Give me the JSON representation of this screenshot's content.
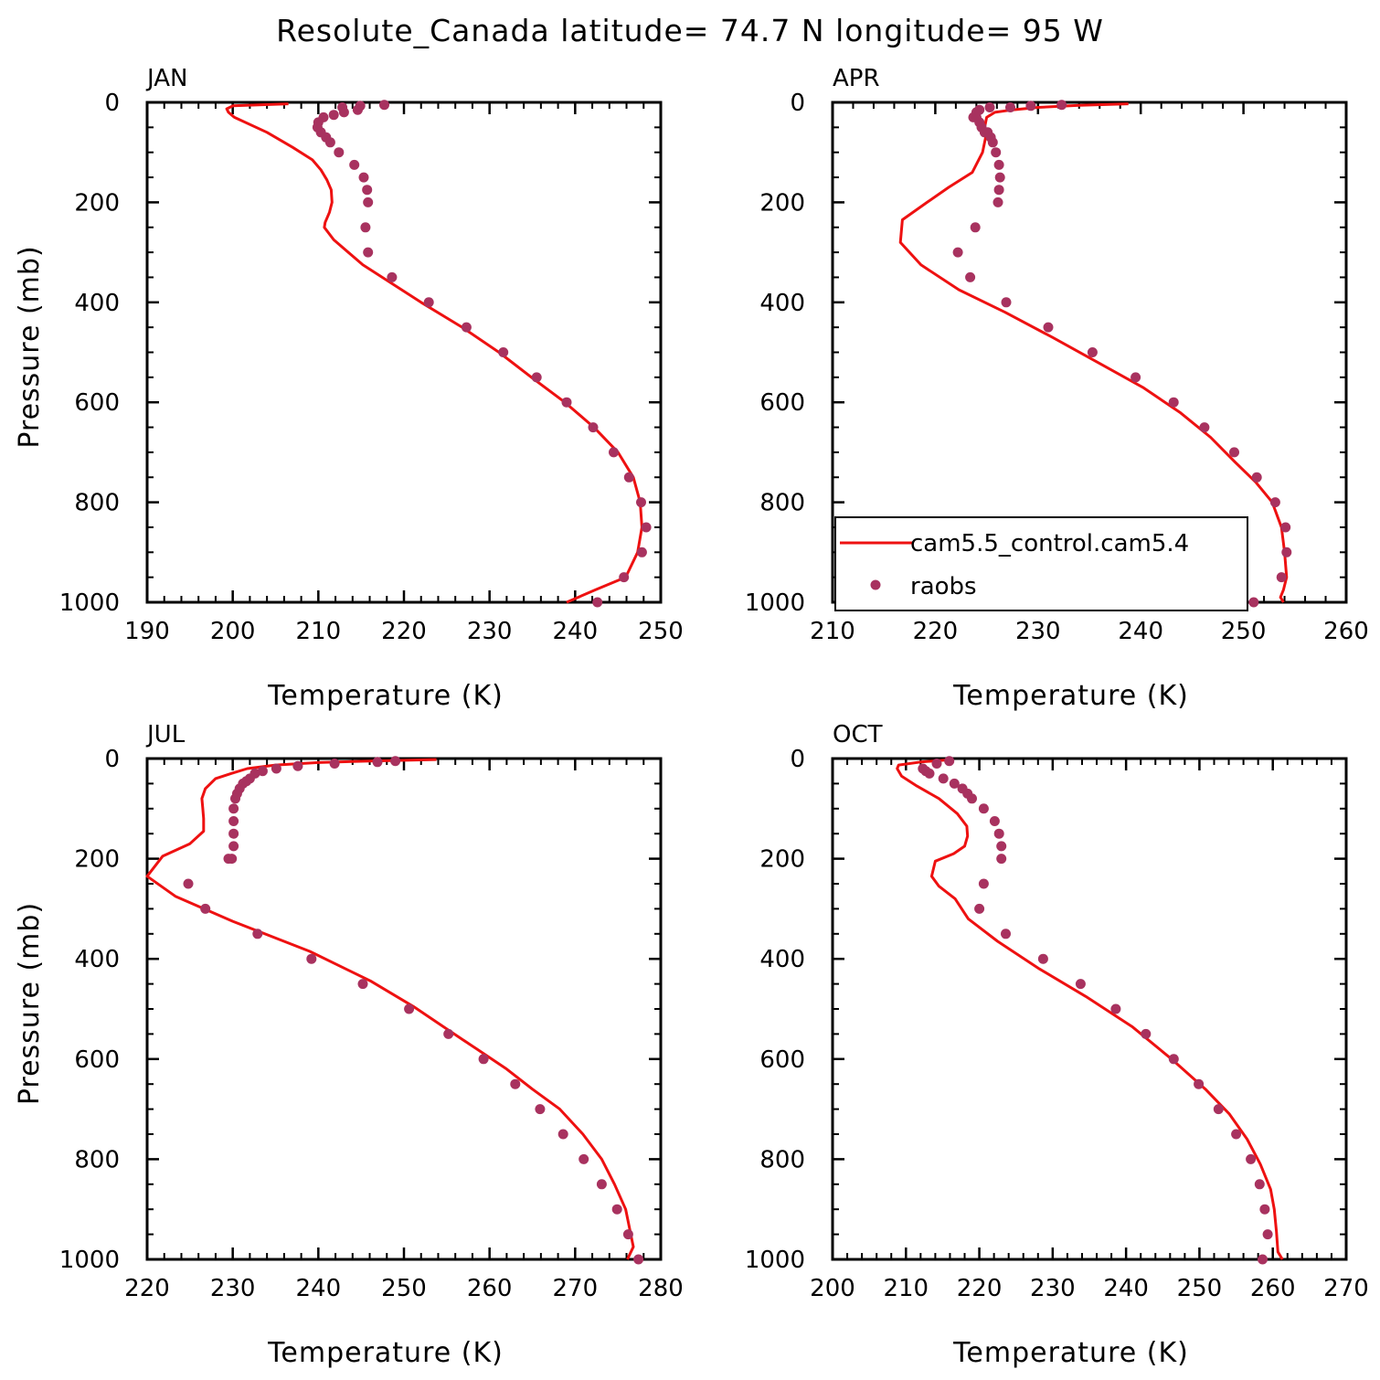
{
  "figure": {
    "title": "Resolute_Canada  latitude= 74.7 N longitude= 95 W"
  },
  "legend": {
    "line_label": "cam5.5_control.cam5.4",
    "dots_label": "raobs"
  },
  "colors": {
    "model_line": "#ee1111",
    "raobs_dots": "#a8325f",
    "axes": "#000000"
  },
  "chart_data": [
    {
      "type": "line",
      "panel_title": "JAN",
      "xlabel": "Temperature (K)",
      "ylabel": "Pressure (mb)",
      "xlim": [
        190,
        250
      ],
      "xticks": [
        190,
        200,
        210,
        220,
        230,
        240,
        250
      ],
      "ylim": [
        1000,
        0
      ],
      "yticks": [
        0,
        200,
        400,
        600,
        800,
        1000
      ],
      "grid": false,
      "series": [
        {
          "name": "cam5.5_control.cam5.4",
          "kind": "line",
          "temperature": [
            206.5,
            200.0,
            199.3,
            199.5,
            200.2,
            204.0,
            207.0,
            209.3,
            210.3,
            211.0,
            211.5,
            211.6,
            211.3,
            210.8,
            210.7,
            211.8,
            215.2,
            222.0,
            226.8,
            231.1,
            234.9,
            238.8,
            242.2,
            245.0,
            246.8,
            247.6,
            247.8,
            247.3,
            245.9,
            242.4,
            239.0
          ],
          "pressure": [
            3,
            7,
            13,
            20,
            30,
            60,
            90,
            115,
            135,
            155,
            175,
            200,
            220,
            240,
            250,
            275,
            325,
            400,
            450,
            500,
            550,
            600,
            650,
            700,
            750,
            800,
            850,
            900,
            950,
            975,
            1000
          ]
        },
        {
          "name": "raobs",
          "kind": "points",
          "temperature": [
            217.7,
            214.9,
            212.8,
            214.6,
            213.0,
            211.8,
            210.6,
            210.0,
            209.9,
            210.3,
            210.9,
            211.4,
            212.4,
            214.2,
            215.3,
            215.7,
            215.8,
            215.5,
            215.8,
            218.6,
            222.9,
            227.3,
            231.6,
            235.5,
            239.0,
            242.1,
            244.5,
            246.3,
            247.7,
            248.3,
            247.8,
            245.7,
            242.6
          ],
          "pressure": [
            5,
            7,
            10,
            15,
            20,
            25,
            30,
            40,
            50,
            60,
            70,
            80,
            100,
            125,
            150,
            175,
            200,
            250,
            300,
            350,
            400,
            450,
            500,
            550,
            600,
            650,
            700,
            750,
            800,
            850,
            900,
            950,
            1000
          ]
        }
      ]
    },
    {
      "type": "line",
      "panel_title": "APR",
      "xlabel": "Temperature (K)",
      "ylabel": "",
      "xlim": [
        210,
        260
      ],
      "xticks": [
        210,
        220,
        230,
        240,
        250,
        260
      ],
      "ylim": [
        1000,
        0
      ],
      "yticks": [
        0,
        200,
        400,
        600,
        800,
        1000
      ],
      "grid": false,
      "series": [
        {
          "name": "cam5.5_control.cam5.4",
          "kind": "line",
          "temperature": [
            238.8,
            234.0,
            230.0,
            227.5,
            225.8,
            225.0,
            224.8,
            224.9,
            224.6,
            223.6,
            221.3,
            219.2,
            216.8,
            216.6,
            218.6,
            222.3,
            226.8,
            231.4,
            235.8,
            240.2,
            243.8,
            246.8,
            249.2,
            251.2,
            252.8,
            253.7,
            254.0,
            254.2,
            253.9,
            253.6,
            253.9
          ],
          "pressure": [
            3,
            6,
            10,
            15,
            20,
            30,
            50,
            70,
            100,
            140,
            170,
            200,
            235,
            280,
            325,
            375,
            420,
            470,
            520,
            570,
            620,
            670,
            720,
            760,
            800,
            850,
            900,
            950,
            975,
            990,
            1000
          ]
        },
        {
          "name": "raobs",
          "kind": "points",
          "temperature": [
            232.3,
            229.3,
            227.3,
            225.3,
            224.3,
            224.0,
            223.7,
            224.0,
            224.3,
            224.5,
            224.8,
            225.1,
            225.4,
            225.6,
            225.9,
            226.2,
            226.3,
            226.2,
            226.1,
            223.9,
            222.2,
            223.4,
            226.9,
            231.0,
            235.3,
            239.5,
            243.2,
            246.2,
            249.1,
            251.3,
            253.1,
            254.1,
            254.2,
            253.7,
            251.0
          ],
          "pressure": [
            5,
            7,
            10,
            10,
            15,
            20,
            30,
            30,
            40,
            50,
            60,
            60,
            70,
            80,
            100,
            125,
            150,
            175,
            200,
            250,
            300,
            350,
            400,
            450,
            500,
            550,
            600,
            650,
            700,
            750,
            800,
            850,
            900,
            950,
            1000
          ]
        }
      ]
    },
    {
      "type": "line",
      "panel_title": "JUL",
      "xlabel": "Temperature (K)",
      "ylabel": "Pressure (mb)",
      "xlim": [
        220,
        280
      ],
      "xticks": [
        220,
        230,
        240,
        250,
        260,
        270,
        280
      ],
      "ylim": [
        1000,
        0
      ],
      "yticks": [
        0,
        200,
        400,
        600,
        800,
        1000
      ],
      "grid": false,
      "series": [
        {
          "name": "cam5.5_control.cam5.4",
          "kind": "line",
          "temperature": [
            253.8,
            246.0,
            240.0,
            235.0,
            231.7,
            229.8,
            228.0,
            226.8,
            226.4,
            226.5,
            226.6,
            226.6,
            225.0,
            221.8,
            220.0,
            223.3,
            230.0,
            239.0,
            246.2,
            251.1,
            255.0,
            258.5,
            262.0,
            265.0,
            268.2,
            270.9,
            273.1,
            274.6,
            275.9,
            276.8,
            276.1
          ],
          "pressure": [
            2,
            5,
            8,
            13,
            20,
            30,
            40,
            60,
            80,
            100,
            120,
            145,
            170,
            195,
            235,
            275,
            325,
            385,
            445,
            495,
            540,
            580,
            620,
            660,
            700,
            750,
            800,
            850,
            900,
            975,
            1000
          ]
        },
        {
          "name": "raobs",
          "kind": "points",
          "temperature": [
            249.0,
            246.9,
            241.9,
            237.6,
            235.1,
            233.5,
            232.6,
            232.0,
            231.6,
            231.2,
            230.8,
            230.5,
            230.3,
            230.1,
            230.1,
            230.1,
            230.1,
            229.9,
            229.5,
            224.8,
            226.8,
            232.9,
            239.2,
            245.2,
            250.6,
            255.2,
            259.3,
            263.0,
            265.9,
            268.6,
            271.0,
            273.1,
            274.9,
            276.2,
            277.4
          ],
          "pressure": [
            5,
            7,
            10,
            15,
            20,
            25,
            30,
            40,
            45,
            50,
            60,
            70,
            80,
            100,
            125,
            150,
            175,
            200,
            200,
            250,
            300,
            350,
            400,
            450,
            500,
            550,
            600,
            650,
            700,
            750,
            800,
            850,
            900,
            950,
            1000
          ]
        }
      ]
    },
    {
      "type": "line",
      "panel_title": "OCT",
      "xlabel": "Temperature (K)",
      "ylabel": "",
      "xlim": [
        200,
        270
      ],
      "xticks": [
        200,
        210,
        220,
        230,
        240,
        250,
        260,
        270
      ],
      "ylim": [
        1000,
        0
      ],
      "yticks": [
        0,
        200,
        400,
        600,
        800,
        1000
      ],
      "grid": false,
      "series": [
        {
          "name": "cam5.5_control.cam5.4",
          "kind": "line",
          "temperature": [
            215.5,
            212.0,
            209.0,
            208.8,
            209.4,
            211.5,
            214.5,
            217.0,
            218.3,
            218.4,
            218.0,
            216.5,
            214.0,
            213.5,
            214.5,
            216.7,
            218.5,
            222.5,
            228.2,
            234.5,
            240.8,
            246.2,
            250.8,
            254.1,
            256.5,
            258.3,
            259.7,
            260.2,
            260.5,
            260.7,
            261.3
          ],
          "pressure": [
            3,
            7,
            13,
            20,
            35,
            55,
            80,
            110,
            135,
            155,
            175,
            190,
            205,
            235,
            255,
            280,
            320,
            365,
            420,
            475,
            535,
            600,
            660,
            710,
            760,
            810,
            860,
            900,
            945,
            985,
            1000
          ]
        },
        {
          "name": "raobs",
          "kind": "points",
          "temperature": [
            215.9,
            214.2,
            212.3,
            212.7,
            213.2,
            215.1,
            216.6,
            217.7,
            218.4,
            219.0,
            220.6,
            222.1,
            222.7,
            223.0,
            223.0,
            220.6,
            220.0,
            223.6,
            228.7,
            233.8,
            238.6,
            242.7,
            246.5,
            249.9,
            252.6,
            255.0,
            257.0,
            258.2,
            258.9,
            259.3,
            258.6
          ],
          "pressure": [
            5,
            10,
            20,
            25,
            30,
            40,
            50,
            60,
            70,
            80,
            100,
            125,
            150,
            175,
            200,
            250,
            300,
            350,
            400,
            450,
            500,
            550,
            600,
            650,
            700,
            750,
            800,
            850,
            900,
            950,
            1000
          ]
        }
      ]
    }
  ]
}
